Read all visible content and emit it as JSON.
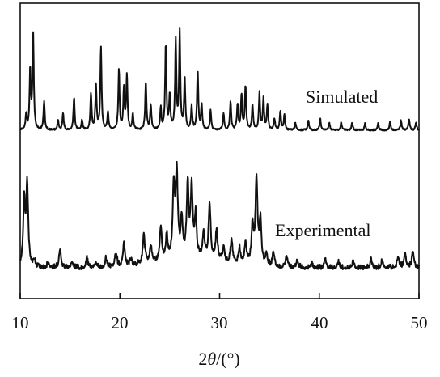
{
  "chart_data": {
    "type": "line",
    "xlabel": "2θ/(°)",
    "ylabel": "",
    "xlim": [
      10,
      50
    ],
    "xticks": [
      10,
      20,
      30,
      40,
      50
    ],
    "grid": false,
    "legend": "none",
    "series": [
      {
        "name": "Simulated",
        "peaks": [
          [
            10.6,
            0.16
          ],
          [
            11.0,
            0.62
          ],
          [
            11.3,
            0.98
          ],
          [
            12.4,
            0.3
          ],
          [
            13.8,
            0.1
          ],
          [
            14.3,
            0.17
          ],
          [
            15.4,
            0.34
          ],
          [
            16.2,
            0.1
          ],
          [
            17.1,
            0.38
          ],
          [
            17.6,
            0.46
          ],
          [
            18.1,
            0.85
          ],
          [
            18.8,
            0.18
          ],
          [
            19.9,
            0.62
          ],
          [
            20.4,
            0.42
          ],
          [
            20.7,
            0.56
          ],
          [
            21.3,
            0.16
          ],
          [
            22.6,
            0.5
          ],
          [
            23.1,
            0.26
          ],
          [
            24.1,
            0.22
          ],
          [
            24.6,
            0.88
          ],
          [
            25.0,
            0.36
          ],
          [
            25.6,
            0.92
          ],
          [
            26.0,
            1.0
          ],
          [
            26.5,
            0.52
          ],
          [
            27.2,
            0.24
          ],
          [
            27.8,
            0.62
          ],
          [
            28.2,
            0.26
          ],
          [
            29.1,
            0.2
          ],
          [
            30.4,
            0.17
          ],
          [
            31.1,
            0.3
          ],
          [
            31.8,
            0.26
          ],
          [
            32.2,
            0.36
          ],
          [
            32.6,
            0.46
          ],
          [
            33.3,
            0.26
          ],
          [
            34.0,
            0.38
          ],
          [
            34.4,
            0.32
          ],
          [
            34.8,
            0.26
          ],
          [
            35.5,
            0.12
          ],
          [
            36.1,
            0.2
          ],
          [
            36.5,
            0.16
          ],
          [
            37.6,
            0.08
          ],
          [
            38.9,
            0.1
          ],
          [
            40.1,
            0.12
          ],
          [
            41.0,
            0.08
          ],
          [
            42.2,
            0.08
          ],
          [
            43.3,
            0.08
          ],
          [
            44.6,
            0.07
          ],
          [
            45.9,
            0.08
          ],
          [
            47.1,
            0.08
          ],
          [
            48.2,
            0.1
          ],
          [
            49.0,
            0.12
          ],
          [
            49.7,
            0.08
          ]
        ]
      },
      {
        "name": "Experimental",
        "peaks": [
          [
            10.4,
            0.7
          ],
          [
            10.7,
            0.88
          ],
          [
            11.4,
            0.08
          ],
          [
            12.8,
            0.06
          ],
          [
            14.0,
            0.22
          ],
          [
            15.2,
            0.06
          ],
          [
            16.7,
            0.1
          ],
          [
            17.6,
            0.06
          ],
          [
            18.6,
            0.1
          ],
          [
            19.6,
            0.16
          ],
          [
            20.4,
            0.26
          ],
          [
            21.1,
            0.08
          ],
          [
            22.4,
            0.34
          ],
          [
            23.1,
            0.2
          ],
          [
            24.1,
            0.38
          ],
          [
            24.7,
            0.26
          ],
          [
            25.4,
            0.78
          ],
          [
            25.7,
            0.94
          ],
          [
            26.2,
            0.42
          ],
          [
            26.8,
            0.82
          ],
          [
            27.2,
            0.78
          ],
          [
            27.6,
            0.46
          ],
          [
            28.4,
            0.3
          ],
          [
            29.0,
            0.62
          ],
          [
            29.7,
            0.34
          ],
          [
            30.4,
            0.16
          ],
          [
            31.2,
            0.26
          ],
          [
            32.0,
            0.18
          ],
          [
            32.6,
            0.24
          ],
          [
            33.3,
            0.44
          ],
          [
            33.7,
            0.96
          ],
          [
            34.1,
            0.5
          ],
          [
            34.7,
            0.14
          ],
          [
            35.4,
            0.16
          ],
          [
            36.7,
            0.14
          ],
          [
            37.8,
            0.08
          ],
          [
            39.2,
            0.06
          ],
          [
            40.6,
            0.1
          ],
          [
            41.9,
            0.08
          ],
          [
            43.4,
            0.08
          ],
          [
            45.2,
            0.1
          ],
          [
            46.3,
            0.08
          ],
          [
            47.9,
            0.12
          ],
          [
            48.6,
            0.16
          ],
          [
            49.4,
            0.18
          ]
        ]
      }
    ]
  },
  "figure_text": {
    "x_ticks": [
      "10",
      "20",
      "30",
      "40",
      "50"
    ],
    "series_labels": [
      "Simulated",
      "Experimental"
    ],
    "xlabel_prefix": "2",
    "xlabel_theta": "θ",
    "xlabel_suffix": "/(°)"
  }
}
